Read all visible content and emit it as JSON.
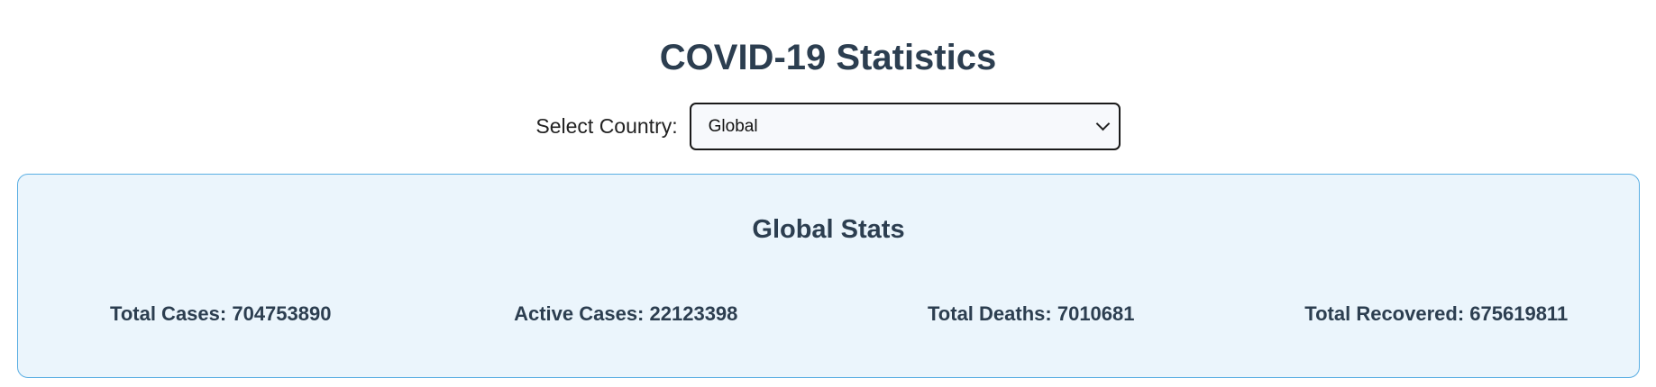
{
  "page": {
    "title": "COVID-19 Statistics"
  },
  "country_selector": {
    "label": "Select Country:",
    "selected": "Global"
  },
  "stats": {
    "title": "Global Stats",
    "items": [
      {
        "label": "Total Cases:",
        "value": "704753890"
      },
      {
        "label": "Active Cases:",
        "value": "22123398"
      },
      {
        "label": "Total Deaths:",
        "value": "7010681"
      },
      {
        "label": "Total Recovered:",
        "value": "675619811"
      }
    ]
  },
  "colors": {
    "heading": "#2c3e50",
    "card_background": "#ebf5fc",
    "card_border": "#5aaee3",
    "select_background": "#f7f9fc"
  },
  "icons": {
    "select_arrow": "chevron-down-icon"
  }
}
